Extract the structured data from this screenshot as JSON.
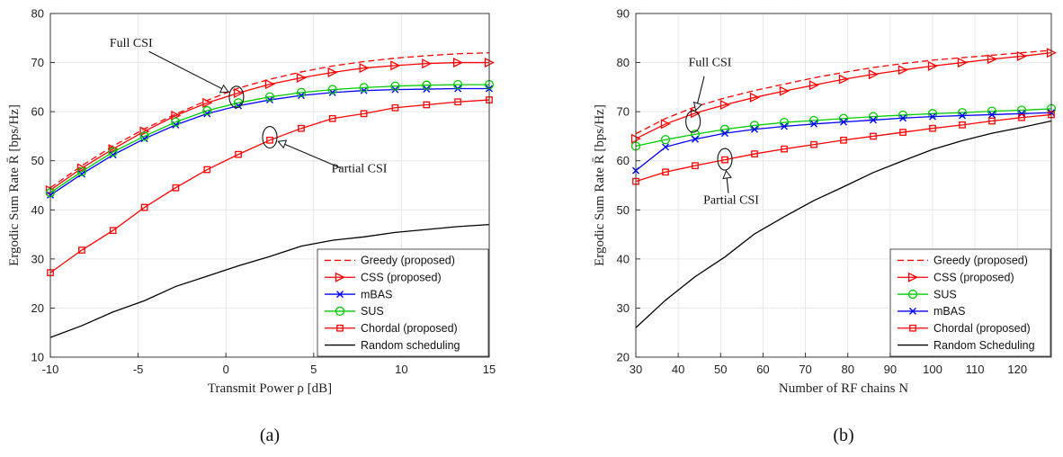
{
  "chart_data": [
    {
      "type": "line",
      "panel_label": "(a)",
      "xlabel": "Transmit Power ρ [dB]",
      "ylabel": "Ergodic Sum Rate R̄ [bps/Hz]",
      "xlim": [
        -10,
        15
      ],
      "ylim": [
        10,
        80
      ],
      "xticks": [
        -10,
        -5,
        0,
        5,
        10,
        15
      ],
      "xtick_labels": [
        "-10",
        "-5",
        "0",
        "5",
        "10",
        "15"
      ],
      "yticks": [
        10,
        20,
        30,
        40,
        50,
        60,
        70,
        80
      ],
      "ytick_labels": [
        "10",
        "20",
        "30",
        "40",
        "50",
        "60",
        "70",
        "80"
      ],
      "grid": true,
      "legend_position": "bottom-right",
      "x": [
        -10,
        -8.21,
        -6.43,
        -4.64,
        -2.86,
        -1.07,
        0.71,
        2.5,
        4.29,
        6.07,
        7.86,
        9.64,
        11.43,
        13.21,
        15
      ],
      "series": [
        {
          "name": "Greedy (proposed)",
          "color": "#ff0000",
          "dash": "dashed",
          "marker": "none",
          "values": [
            44.5,
            49.0,
            53.0,
            56.5,
            59.5,
            62.3,
            64.8,
            66.6,
            68.1,
            69.3,
            70.2,
            70.9,
            71.4,
            71.8,
            72.0
          ]
        },
        {
          "name": "CSS (proposed)",
          "color": "#ff0000",
          "dash": "solid",
          "marker": "triangle-right",
          "values": [
            44.0,
            48.5,
            52.4,
            56.0,
            59.2,
            61.8,
            63.8,
            65.6,
            66.9,
            68.0,
            68.9,
            69.4,
            69.8,
            70.0,
            70.0
          ]
        },
        {
          "name": "mBAS",
          "color": "#0000ff",
          "dash": "solid",
          "marker": "x",
          "values": [
            43.0,
            47.3,
            51.2,
            54.5,
            57.3,
            59.6,
            61.2,
            62.4,
            63.3,
            63.9,
            64.3,
            64.5,
            64.6,
            64.7,
            64.7
          ]
        },
        {
          "name": "SUS",
          "color": "#00cc00",
          "dash": "solid",
          "marker": "circle",
          "values": [
            43.5,
            47.8,
            51.8,
            55.0,
            57.9,
            60.2,
            61.8,
            63.0,
            63.9,
            64.5,
            64.9,
            65.2,
            65.4,
            65.5,
            65.5
          ]
        },
        {
          "name": "Chordal (proposed)",
          "color": "#ff0000",
          "dash": "solid",
          "marker": "square",
          "values": [
            27.2,
            31.8,
            35.8,
            40.5,
            44.5,
            48.2,
            51.3,
            54.2,
            56.6,
            58.6,
            59.6,
            60.8,
            61.4,
            62.0,
            62.4
          ]
        },
        {
          "name": "Random scheduling",
          "color": "#000000",
          "dash": "solid",
          "marker": "none",
          "values": [
            14.0,
            16.4,
            19.2,
            21.5,
            24.4,
            26.5,
            28.6,
            30.5,
            32.6,
            33.8,
            34.5,
            35.4,
            36.0,
            36.6,
            37.0
          ]
        }
      ],
      "annotations": [
        {
          "text": "Full CSI",
          "target": [
            0.6,
            63.0
          ],
          "label_at": [
            -5.4,
            73.2
          ]
        },
        {
          "text": "Partial CSI",
          "target": [
            2.5,
            54.8
          ],
          "label_at": [
            7.6,
            47.7
          ]
        }
      ]
    },
    {
      "type": "line",
      "panel_label": "(b)",
      "xlabel": "Number of RF chains N",
      "ylabel": "Ergodic Sum Rate R̄ [bps/Hz]",
      "xlim": [
        30,
        128
      ],
      "ylim": [
        20,
        90
      ],
      "xticks": [
        30,
        40,
        50,
        60,
        70,
        80,
        90,
        100,
        110,
        120
      ],
      "xtick_labels": [
        "30",
        "40",
        "50",
        "60",
        "70",
        "80",
        "90",
        "100",
        "110",
        "120"
      ],
      "yticks": [
        20,
        30,
        40,
        50,
        60,
        70,
        80,
        90
      ],
      "ytick_labels": [
        "20",
        "30",
        "40",
        "50",
        "60",
        "70",
        "80",
        "90"
      ],
      "grid": true,
      "legend_position": "bottom-right",
      "x": [
        30,
        37,
        44,
        51,
        58,
        65,
        72,
        79,
        86,
        93,
        100,
        107,
        114,
        121,
        128
      ],
      "series": [
        {
          "name": "Greedy (proposed)",
          "color": "#ff0000",
          "dash": "dashed",
          "marker": "none",
          "values": [
            65.5,
            68.6,
            71.0,
            72.8,
            74.3,
            75.6,
            76.9,
            78.0,
            79.0,
            79.8,
            80.5,
            81.0,
            81.5,
            82.0,
            82.5
          ]
        },
        {
          "name": "CSS (proposed)",
          "color": "#ff0000",
          "dash": "solid",
          "marker": "triangle-right",
          "values": [
            64.5,
            67.5,
            69.7,
            71.4,
            72.9,
            74.2,
            75.4,
            76.6,
            77.6,
            78.5,
            79.3,
            80.0,
            80.7,
            81.3,
            82.0
          ]
        },
        {
          "name": "SUS",
          "color": "#00cc00",
          "dash": "solid",
          "marker": "circle",
          "values": [
            63.0,
            64.3,
            65.4,
            66.4,
            67.2,
            67.8,
            68.2,
            68.6,
            69.0,
            69.3,
            69.6,
            69.8,
            70.1,
            70.3,
            70.6
          ]
        },
        {
          "name": "mBAS",
          "color": "#0000ff",
          "dash": "solid",
          "marker": "x",
          "values": [
            58.0,
            62.8,
            64.4,
            65.6,
            66.4,
            67.0,
            67.5,
            67.9,
            68.3,
            68.7,
            69.0,
            69.2,
            69.4,
            69.6,
            69.8
          ]
        },
        {
          "name": "Chordal (proposed)",
          "color": "#ff0000",
          "dash": "solid",
          "marker": "square",
          "values": [
            55.8,
            57.7,
            59.0,
            60.2,
            61.4,
            62.4,
            63.3,
            64.2,
            65.0,
            65.8,
            66.6,
            67.3,
            68.1,
            68.8,
            69.4
          ]
        },
        {
          "name": "Random Scheduling",
          "color": "#000000",
          "dash": "solid",
          "marker": "none",
          "values": [
            26.0,
            31.6,
            36.4,
            40.4,
            45.1,
            48.6,
            51.9,
            54.7,
            57.6,
            60.0,
            62.3,
            64.1,
            65.6,
            66.8,
            68.1
          ]
        }
      ],
      "annotations": [
        {
          "text": "Full CSI",
          "target": [
            43.5,
            68.0
          ],
          "label_at": [
            47.5,
            79.3
          ]
        },
        {
          "text": "Partial CSI",
          "target": [
            51.0,
            60.3
          ],
          "label_at": [
            52.5,
            51.2
          ]
        }
      ]
    }
  ]
}
